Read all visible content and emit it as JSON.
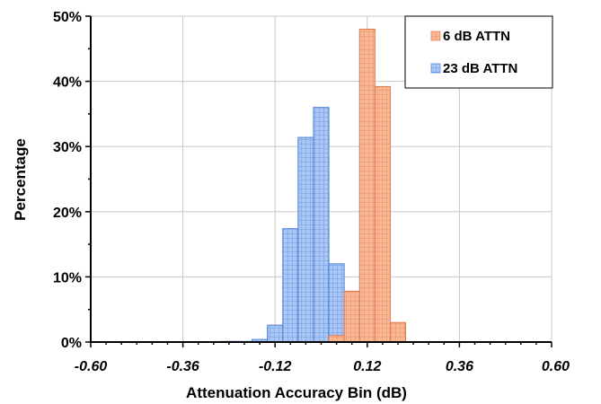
{
  "chart_data": {
    "type": "bar",
    "xlabel": "Attenuation Accuracy Bin (dB)",
    "ylabel": "Percentage",
    "xlim": [
      -0.6,
      0.6
    ],
    "ylim": [
      0,
      50
    ],
    "x_ticks": [
      "-0.60",
      "-0.36",
      "-0.12",
      "0.12",
      "0.36",
      "0.60"
    ],
    "y_ticks": [
      "0%",
      "10%",
      "20%",
      "30%",
      "40%",
      "50%"
    ],
    "bin_width": 0.04,
    "grid": true,
    "legend_position": "top-right",
    "series": [
      {
        "name": "23 dB ATTN",
        "color": "#6d9eeb",
        "bins": [
          {
            "x": -0.24,
            "value": 0.1
          },
          {
            "x": -0.2,
            "value": 0.1
          },
          {
            "x": -0.16,
            "value": 0.4
          },
          {
            "x": -0.12,
            "value": 2.6
          },
          {
            "x": -0.08,
            "value": 17.4
          },
          {
            "x": -0.04,
            "value": 31.4
          },
          {
            "x": 0.0,
            "value": 36.0
          },
          {
            "x": 0.04,
            "value": 12.0
          },
          {
            "x": 0.08,
            "value": 0.2
          }
        ]
      },
      {
        "name": "6 dB ATTN",
        "color": "#f4a27e",
        "bins": [
          {
            "x": 0.04,
            "value": 1.0
          },
          {
            "x": 0.08,
            "value": 7.8
          },
          {
            "x": 0.12,
            "value": 48.0
          },
          {
            "x": 0.16,
            "value": 39.2
          },
          {
            "x": 0.2,
            "value": 3.0
          }
        ]
      }
    ]
  }
}
